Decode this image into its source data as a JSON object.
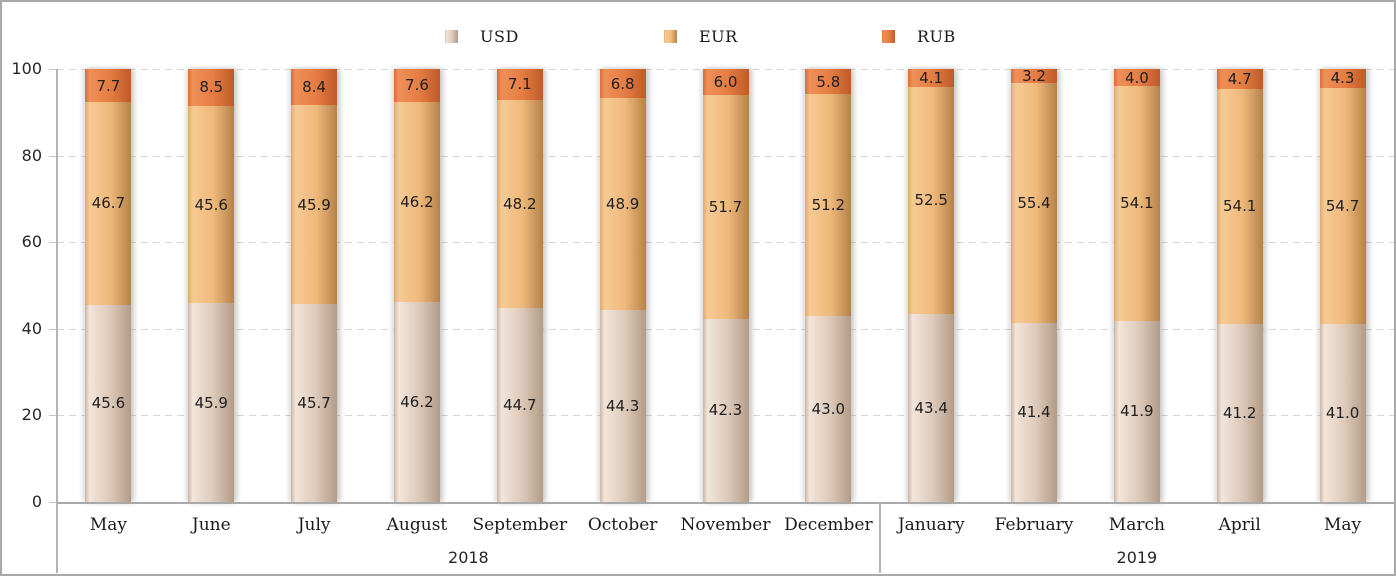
{
  "legend": {
    "items": [
      {
        "label": "USD"
      },
      {
        "label": "EUR"
      },
      {
        "label": "RUB"
      }
    ]
  },
  "colors": {
    "USD": {
      "edge": "#cbb6a4",
      "light": "#f2e5da",
      "mid": "#ddc9b9",
      "dark": "#b29b87"
    },
    "EUR": {
      "edge": "#e0a96e",
      "light": "#f7ca94",
      "mid": "#efb97b",
      "dark": "#b5824a"
    },
    "RUB": {
      "edge": "#d96e35",
      "light": "#ef9059",
      "mid": "#e57c42",
      "dark": "#bd5b2a"
    },
    "gridline": "#d6d6d6",
    "axis": "#b3b3b3",
    "border": "#a9a9a9"
  },
  "chart_data": {
    "type": "bar",
    "stacked": true,
    "unit": "percent",
    "categories": [
      "May",
      "June",
      "July",
      "August",
      "September",
      "October",
      "November",
      "December",
      "January",
      "February",
      "March",
      "April",
      "May"
    ],
    "year_groups": [
      {
        "label": "2018",
        "span": 8
      },
      {
        "label": "2019",
        "span": 5
      }
    ],
    "series": [
      {
        "name": "USD",
        "values": [
          45.6,
          45.9,
          45.7,
          46.2,
          44.7,
          44.3,
          42.3,
          43.0,
          43.4,
          41.4,
          41.9,
          41.2,
          41.0
        ],
        "labels": [
          "45.6",
          "45.9",
          "45.7",
          "46.2",
          "44.7",
          "44.3",
          "42.3",
          "43.0",
          "43.4",
          "41.4",
          "41.9",
          "41.2",
          "41.0"
        ]
      },
      {
        "name": "EUR",
        "values": [
          46.7,
          45.6,
          45.9,
          46.2,
          48.2,
          48.9,
          51.7,
          51.2,
          52.5,
          55.4,
          54.1,
          54.1,
          54.7
        ],
        "labels": [
          "46.7",
          "45.6",
          "45.9",
          "46.2",
          "48.2",
          "48.9",
          "51.7",
          "51.2",
          "52.5",
          "55.4",
          "54.1",
          "54.1",
          "54.7"
        ]
      },
      {
        "name": "RUB",
        "values": [
          7.7,
          8.5,
          8.4,
          7.6,
          7.1,
          6.8,
          6.0,
          5.8,
          4.1,
          3.2,
          4.0,
          4.7,
          4.3
        ],
        "labels": [
          "7.7",
          "8.5",
          "8.4",
          "7.6",
          "7.1",
          "6.8",
          "6.0",
          "5.8",
          "4.1",
          "3.2",
          "4.0",
          "4.7",
          "4.3"
        ]
      }
    ],
    "yticks": [
      0,
      20,
      40,
      60,
      80,
      100
    ],
    "ylim": [
      0,
      100
    ],
    "grid": "horizontal-dashed",
    "legend_position": "top"
  }
}
